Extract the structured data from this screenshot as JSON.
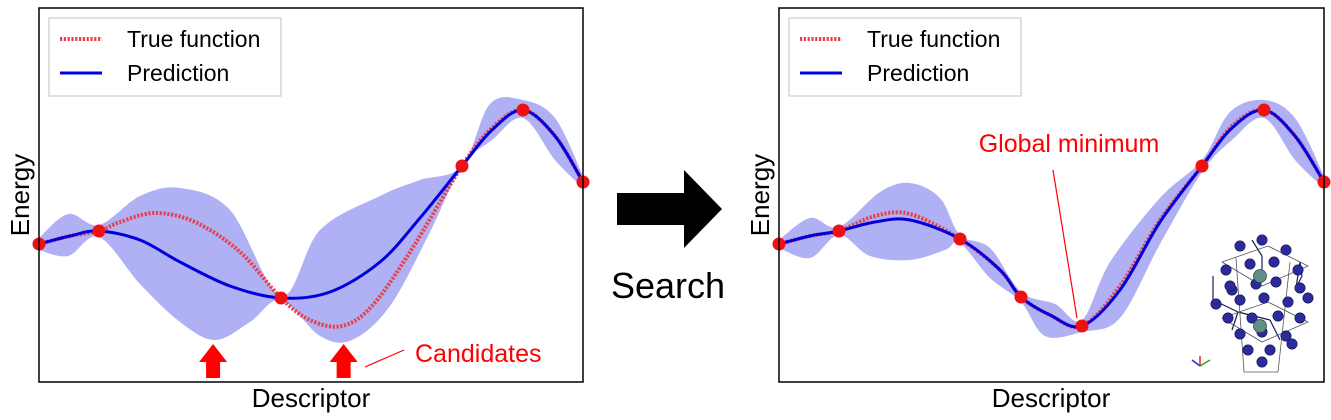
{
  "colors": {
    "true_function": "#e8404a",
    "prediction": "#0000dd",
    "uncertainty_band": "#b0b0f4",
    "observed_point": "#ee1111",
    "candidate_arrow": "#ff0000",
    "annotation_text": "#ff0000",
    "big_arrow": "#000000",
    "atom": "#2b2b9e",
    "center_atom": "#5f8f86"
  },
  "panels": [
    {
      "id": "before",
      "xlabel": "Descriptor",
      "ylabel": "Energy",
      "legend": {
        "position": "top-left",
        "items": [
          "True function",
          "Prediction"
        ]
      },
      "annotation": "Candidates",
      "candidate_arrow_x": [
        0.32,
        0.56
      ]
    },
    {
      "id": "after",
      "xlabel": "Descriptor",
      "ylabel": "Energy",
      "legend": {
        "position": "top-left",
        "items": [
          "True function",
          "Prediction"
        ]
      },
      "annotation": "Global minimum",
      "inset": "crystal-structure"
    }
  ],
  "arrow_label": "Search"
}
